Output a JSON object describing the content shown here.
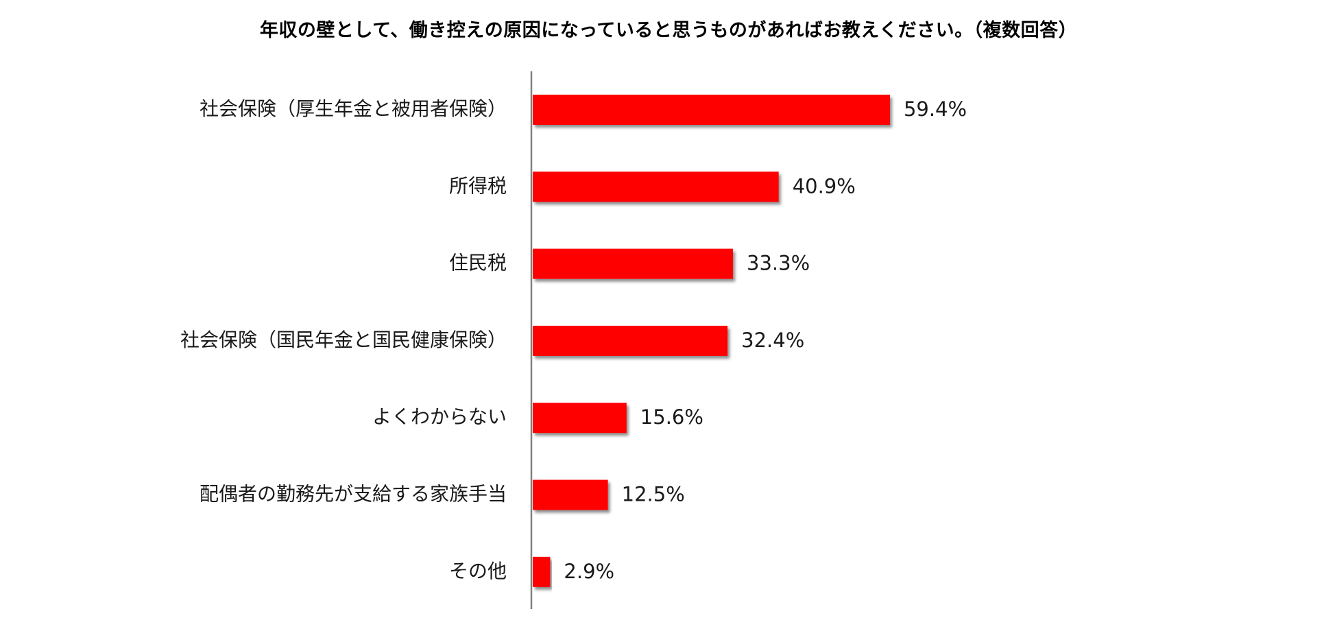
{
  "chart_data": {
    "type": "bar",
    "orientation": "horizontal",
    "title": "年収の壁として、働き控えの原因になっていると思うものがあればお教えください。（複数回答）",
    "xlabel": "",
    "ylabel": "",
    "xlim": [
      0,
      100
    ],
    "unit_suffix": "%",
    "grid": false,
    "bar_color": "#ff0000",
    "axis_color": "#808080",
    "categories": [
      "社会保険（厚生年金と被用者保険）",
      "所得税",
      "住民税",
      "社会保険（国民年金と国民健康保険）",
      "よくわからない",
      "配偶者の勤務先が支給する家族手当",
      "その他"
    ],
    "values": [
      59.4,
      40.9,
      33.3,
      32.4,
      15.6,
      12.5,
      2.9
    ],
    "value_labels": [
      "59.4%",
      "40.9%",
      "33.3%",
      "32.4%",
      "15.6%",
      "12.5%",
      "2.9%"
    ]
  }
}
